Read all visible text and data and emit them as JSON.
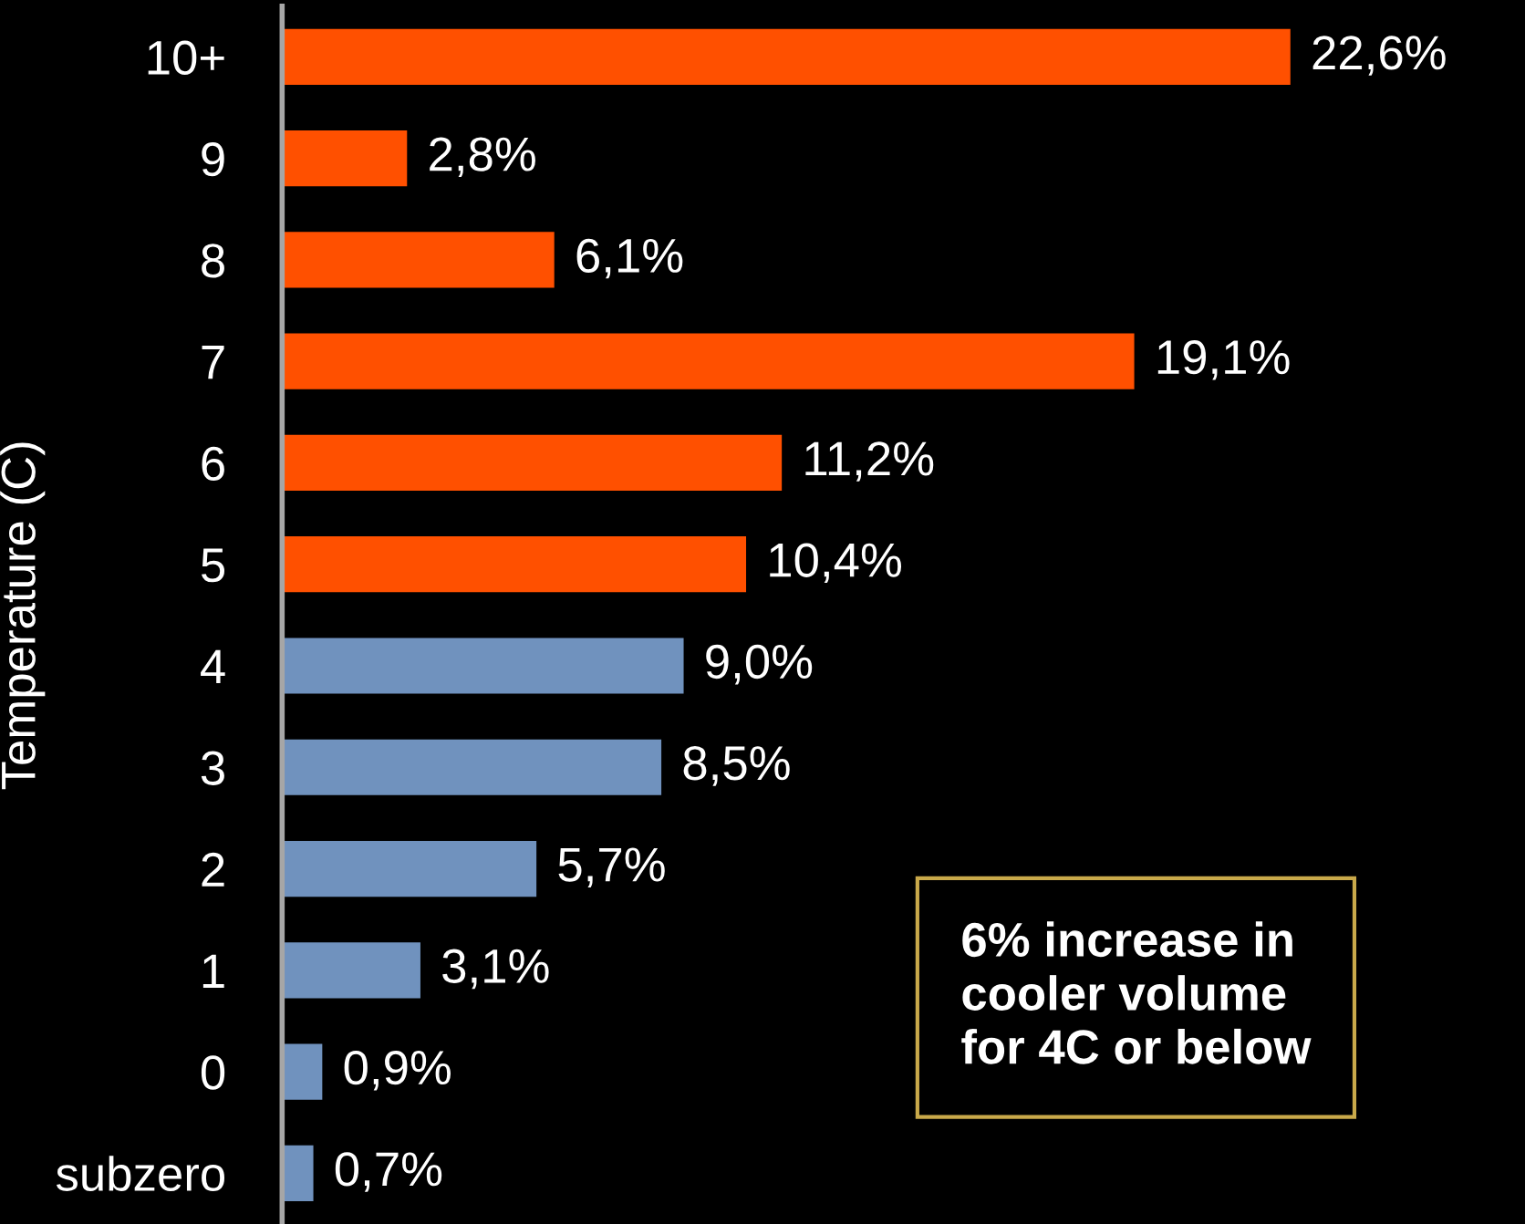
{
  "chart_data": {
    "type": "bar",
    "orientation": "horizontal",
    "ylabel": "Temperature (C)",
    "categories": [
      "10+",
      "9",
      "8",
      "7",
      "6",
      "5",
      "4",
      "3",
      "2",
      "1",
      "0",
      "subzero"
    ],
    "values": [
      22.6,
      2.8,
      6.1,
      19.1,
      11.2,
      10.4,
      9.0,
      8.5,
      5.7,
      3.1,
      0.9,
      0.7
    ],
    "value_labels": [
      "22,6%",
      "2,8%",
      "6,1%",
      "19,1%",
      "11,2%",
      "10,4%",
      "9,0%",
      "8,5%",
      "5,7%",
      "3,1%",
      "0,9%",
      "0,7%"
    ],
    "colors": [
      "#ff5000",
      "#ff5000",
      "#ff5000",
      "#ff5000",
      "#ff5000",
      "#ff5000",
      "#7092be",
      "#7092be",
      "#7092be",
      "#7092be",
      "#7092be",
      "#7092be"
    ],
    "annotations": [
      "6% increase in\ncooler volume\nfor 4C or below"
    ],
    "tick_labels": "y"
  }
}
